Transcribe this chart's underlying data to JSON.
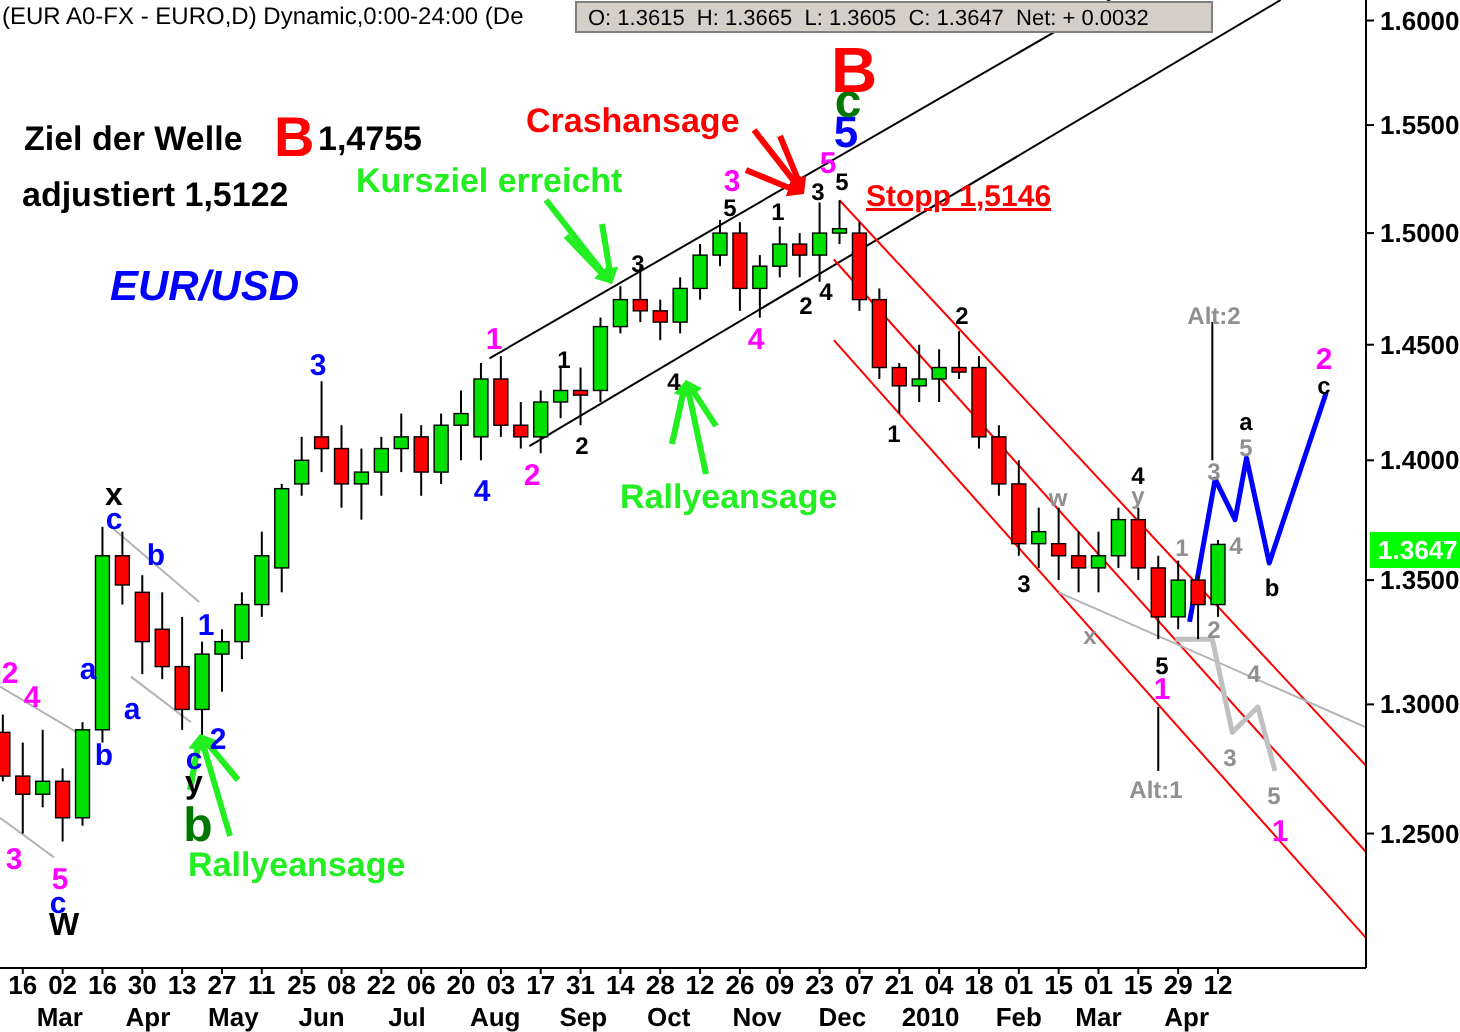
{
  "chart_data": {
    "type": "candlestick",
    "title": "(EUR A0-FX - EURO,D) Dynamic,0:00-24:00 (De",
    "subtitle": "O: 1.3615  H: 1.3665  L: 1.3605  C: 1.3647  Net: + 0.0032",
    "log": "y",
    "xlim": [
      "2009-02-08",
      "2010-06-03"
    ],
    "ylim": [
      1.2,
      1.61
    ],
    "yticks": [
      {
        "value": 1.25,
        "label": "1.2500"
      },
      {
        "value": 1.3,
        "label": "1.3000"
      },
      {
        "value": 1.35,
        "label": "1.3500"
      },
      {
        "value": 1.4,
        "label": "1.4000"
      },
      {
        "value": 1.45,
        "label": "1.4500"
      },
      {
        "value": 1.5,
        "label": "1.5000"
      },
      {
        "value": 1.55,
        "label": "1.5500"
      },
      {
        "value": 1.6,
        "label": "1.6000"
      }
    ],
    "xticks": [
      {
        "value": "2009-02-16",
        "label": "16"
      },
      {
        "value": "2009-03-02",
        "label": "02"
      },
      {
        "value": "2009-03-16",
        "label": "16"
      },
      {
        "value": "2009-03-30",
        "label": "30"
      },
      {
        "value": "2009-04-13",
        "label": "13"
      },
      {
        "value": "2009-04-27",
        "label": "27"
      },
      {
        "value": "2009-05-11",
        "label": "11"
      },
      {
        "value": "2009-05-25",
        "label": "25"
      },
      {
        "value": "2009-06-08",
        "label": "08"
      },
      {
        "value": "2009-06-22",
        "label": "22"
      },
      {
        "value": "2009-07-06",
        "label": "06"
      },
      {
        "value": "2009-07-20",
        "label": "20"
      },
      {
        "value": "2009-08-03",
        "label": "03"
      },
      {
        "value": "2009-08-17",
        "label": "17"
      },
      {
        "value": "2009-08-31",
        "label": "31"
      },
      {
        "value": "2009-09-14",
        "label": "14"
      },
      {
        "value": "2009-09-28",
        "label": "28"
      },
      {
        "value": "2009-10-12",
        "label": "12"
      },
      {
        "value": "2009-10-26",
        "label": "26"
      },
      {
        "value": "2009-11-09",
        "label": "09"
      },
      {
        "value": "2009-11-23",
        "label": "23"
      },
      {
        "value": "2009-12-07",
        "label": "07"
      },
      {
        "value": "2009-12-21",
        "label": "21"
      },
      {
        "value": "2010-01-04",
        "label": "04"
      },
      {
        "value": "2010-01-18",
        "label": "18"
      },
      {
        "value": "2010-02-01",
        "label": "01"
      },
      {
        "value": "2010-02-15",
        "label": "15"
      },
      {
        "value": "2010-03-01",
        "label": "01"
      },
      {
        "value": "2010-03-15",
        "label": "15"
      },
      {
        "value": "2010-03-29",
        "label": "29"
      },
      {
        "value": "2010-04-12",
        "label": "12"
      }
    ],
    "x2lim": [
      "2009-02-08",
      "2010-06-03"
    ],
    "x2ticks": [
      {
        "value": "2009-03-01",
        "label": "Mar"
      },
      {
        "value": "2009-04-01",
        "label": "Apr"
      },
      {
        "value": "2009-05-01",
        "label": "May"
      },
      {
        "value": "2009-06-01",
        "label": "Jun"
      },
      {
        "value": "2009-07-01",
        "label": "Jul"
      },
      {
        "value": "2009-08-01",
        "label": "Aug"
      },
      {
        "value": "2009-09-01",
        "label": "Sep"
      },
      {
        "value": "2009-10-01",
        "label": "Oct"
      },
      {
        "value": "2009-11-01",
        "label": "Nov"
      },
      {
        "value": "2009-12-01",
        "label": "Dec"
      },
      {
        "value": "2010-01-01",
        "label": "2010"
      },
      {
        "value": "2010-02-01",
        "label": "Feb"
      },
      {
        "value": "2010-03-01",
        "label": "Mar"
      },
      {
        "value": "2010-04-01",
        "label": "Apr"
      }
    ],
    "x": [
      "2009-02-09",
      "2009-02-16",
      "2009-02-23",
      "2009-03-02",
      "2009-03-09",
      "2009-03-16",
      "2009-03-23",
      "2009-03-30",
      "2009-04-06",
      "2009-04-13",
      "2009-04-20",
      "2009-04-27",
      "2009-05-04",
      "2009-05-11",
      "2009-05-18",
      "2009-05-25",
      "2009-06-01",
      "2009-06-08",
      "2009-06-15",
      "2009-06-22",
      "2009-06-29",
      "2009-07-06",
      "2009-07-13",
      "2009-07-20",
      "2009-07-27",
      "2009-08-03",
      "2009-08-10",
      "2009-08-17",
      "2009-08-24",
      "2009-08-31",
      "2009-09-07",
      "2009-09-14",
      "2009-09-21",
      "2009-09-28",
      "2009-10-05",
      "2009-10-12",
      "2009-10-19",
      "2009-10-26",
      "2009-11-02",
      "2009-11-09",
      "2009-11-16",
      "2009-11-23",
      "2009-11-30",
      "2009-12-07",
      "2009-12-14",
      "2009-12-21",
      "2009-12-28",
      "2010-01-04",
      "2010-01-11",
      "2010-01-18",
      "2010-01-25",
      "2010-02-01",
      "2010-02-08",
      "2010-02-15",
      "2010-02-22",
      "2010-03-01",
      "2010-03-08",
      "2010-03-15",
      "2010-03-22",
      "2010-03-29",
      "2010-04-05",
      "2010-04-12"
    ],
    "ohlc": [
      [
        1.289,
        1.296,
        1.27,
        1.272
      ],
      [
        1.272,
        1.285,
        1.25,
        1.265
      ],
      [
        1.265,
        1.29,
        1.26,
        1.27
      ],
      [
        1.27,
        1.275,
        1.247,
        1.256
      ],
      [
        1.256,
        1.293,
        1.253,
        1.29
      ],
      [
        1.29,
        1.372,
        1.285,
        1.36
      ],
      [
        1.36,
        1.37,
        1.34,
        1.348
      ],
      [
        1.345,
        1.352,
        1.312,
        1.325
      ],
      [
        1.33,
        1.345,
        1.31,
        1.315
      ],
      [
        1.315,
        1.335,
        1.29,
        1.298
      ],
      [
        1.298,
        1.325,
        1.287,
        1.32
      ],
      [
        1.32,
        1.33,
        1.305,
        1.325
      ],
      [
        1.325,
        1.345,
        1.318,
        1.34
      ],
      [
        1.34,
        1.37,
        1.335,
        1.36
      ],
      [
        1.355,
        1.39,
        1.345,
        1.388
      ],
      [
        1.39,
        1.41,
        1.385,
        1.4
      ],
      [
        1.41,
        1.434,
        1.395,
        1.405
      ],
      [
        1.405,
        1.415,
        1.38,
        1.39
      ],
      [
        1.39,
        1.405,
        1.375,
        1.395
      ],
      [
        1.395,
        1.41,
        1.385,
        1.405
      ],
      [
        1.405,
        1.42,
        1.395,
        1.41
      ],
      [
        1.41,
        1.415,
        1.385,
        1.395
      ],
      [
        1.395,
        1.42,
        1.39,
        1.415
      ],
      [
        1.415,
        1.43,
        1.4,
        1.42
      ],
      [
        1.41,
        1.442,
        1.4,
        1.435
      ],
      [
        1.435,
        1.445,
        1.41,
        1.415
      ],
      [
        1.415,
        1.425,
        1.405,
        1.41
      ],
      [
        1.41,
        1.43,
        1.403,
        1.425
      ],
      [
        1.425,
        1.44,
        1.418,
        1.43
      ],
      [
        1.43,
        1.44,
        1.415,
        1.428
      ],
      [
        1.43,
        1.462,
        1.425,
        1.458
      ],
      [
        1.458,
        1.476,
        1.455,
        1.47
      ],
      [
        1.47,
        1.485,
        1.46,
        1.465
      ],
      [
        1.465,
        1.47,
        1.452,
        1.46
      ],
      [
        1.46,
        1.48,
        1.455,
        1.475
      ],
      [
        1.475,
        1.495,
        1.47,
        1.49
      ],
      [
        1.49,
        1.506,
        1.485,
        1.5
      ],
      [
        1.5,
        1.505,
        1.465,
        1.475
      ],
      [
        1.475,
        1.49,
        1.462,
        1.485
      ],
      [
        1.485,
        1.503,
        1.48,
        1.495
      ],
      [
        1.495,
        1.5,
        1.48,
        1.49
      ],
      [
        1.49,
        1.514,
        1.478,
        1.5
      ],
      [
        1.5,
        1.515,
        1.495,
        1.502
      ],
      [
        1.5,
        1.505,
        1.465,
        1.47
      ],
      [
        1.47,
        1.475,
        1.435,
        1.44
      ],
      [
        1.44,
        1.442,
        1.42,
        1.432
      ],
      [
        1.432,
        1.45,
        1.425,
        1.435
      ],
      [
        1.435,
        1.448,
        1.425,
        1.44
      ],
      [
        1.44,
        1.456,
        1.435,
        1.438
      ],
      [
        1.44,
        1.445,
        1.405,
        1.41
      ],
      [
        1.41,
        1.415,
        1.385,
        1.39
      ],
      [
        1.39,
        1.4,
        1.36,
        1.365
      ],
      [
        1.365,
        1.38,
        1.355,
        1.37
      ],
      [
        1.365,
        1.38,
        1.35,
        1.36
      ],
      [
        1.36,
        1.37,
        1.345,
        1.355
      ],
      [
        1.355,
        1.37,
        1.345,
        1.36
      ],
      [
        1.36,
        1.38,
        1.355,
        1.375
      ],
      [
        1.375,
        1.38,
        1.35,
        1.355
      ],
      [
        1.355,
        1.36,
        1.326,
        1.335
      ],
      [
        1.335,
        1.358,
        1.33,
        1.35
      ],
      [
        1.35,
        1.352,
        1.326,
        1.34
      ],
      [
        1.34,
        1.3665,
        1.335,
        1.3647
      ]
    ],
    "series": [
      {
        "type": "line",
        "color": "#000000",
        "x": [
          "2009-07-30",
          "2010-03-05"
        ],
        "values": [
          1.444,
          1.61
        ]
      },
      {
        "type": "line",
        "color": "#000000",
        "x": [
          "2009-08-13",
          "2010-05-04"
        ],
        "values": [
          1.406,
          1.61
        ]
      },
      {
        "type": "line",
        "color": "#ff0000",
        "x": [
          "2009-11-30",
          "2010-06-03"
        ],
        "values": [
          1.515,
          1.276
        ]
      },
      {
        "type": "line",
        "color": "#ff0000",
        "x": [
          "2009-11-28",
          "2010-06-03"
        ],
        "values": [
          1.488,
          1.243
        ]
      },
      {
        "type": "line",
        "color": "#ff0000",
        "x": [
          "2009-11-28",
          "2010-06-03"
        ],
        "values": [
          1.452,
          1.211
        ]
      },
      {
        "type": "line",
        "color": "#b4b4b4",
        "x": [
          "2009-02-08",
          "2009-03-07"
        ],
        "values": [
          1.307,
          1.289
        ]
      },
      {
        "type": "line",
        "color": "#b4b4b4",
        "x": [
          "2009-03-19",
          "2009-04-19"
        ],
        "values": [
          1.372,
          1.341
        ]
      },
      {
        "type": "line",
        "color": "#b4b4b4",
        "x": [
          "2009-03-26",
          "2009-04-16"
        ],
        "values": [
          1.311,
          1.293
        ]
      },
      {
        "type": "line",
        "color": "#b4b4b4",
        "x": [
          "2009-02-08",
          "2009-02-27"
        ],
        "values": [
          1.256,
          1.241
        ]
      },
      {
        "type": "line",
        "color": "#b4b4b4",
        "x": [
          "2010-02-15",
          "2010-06-03"
        ],
        "values": [
          1.345,
          1.291
        ]
      },
      {
        "type": "line",
        "color": "#000000",
        "x": [
          "2010-04-10",
          "2010-04-10"
        ],
        "values": [
          1.46,
          1.4
        ]
      },
      {
        "type": "line",
        "color": "#000000",
        "x": [
          "2010-03-22",
          "2010-03-22"
        ],
        "values": [
          1.299,
          1.274
        ]
      },
      {
        "type": "line",
        "color": "#c0c0c0",
        "x": [
          "2010-03-28",
          "2010-04-10",
          "2010-04-17",
          "2010-04-26",
          "2010-05-02"
        ],
        "values": [
          1.326,
          1.326,
          1.289,
          1.299,
          1.274
        ]
      },
      {
        "type": "line",
        "color": "#0000ff",
        "x": [
          "2010-04-02",
          "2010-04-11",
          "2010-04-18",
          "2010-04-22",
          "2010-04-30",
          "2010-05-20"
        ],
        "values": [
          1.333,
          1.392,
          1.375,
          1.401,
          1.357,
          1.429
        ]
      }
    ],
    "annotations": [
      "Ziel der Welle",
      "B",
      "1,4755",
      "adjustiert 1,5122",
      "EUR/USD",
      "Crashansage",
      "Kursziel erreicht",
      "Rallyeansage",
      "Rallyeansage",
      "Stopp 1,5146",
      "2",
      "4",
      "3",
      "5",
      "c",
      "W",
      "x",
      "c",
      "b",
      "a",
      "b",
      "a",
      "1",
      "2",
      "c",
      "y",
      "b",
      "3",
      "4",
      "1",
      "2",
      "1",
      "2",
      "3",
      "4",
      "3",
      "5",
      "4",
      "1",
      "2",
      "4",
      "3",
      "5",
      "5",
      "5",
      "c",
      "B",
      "1",
      "2",
      "3",
      "w",
      "x",
      "4",
      "y",
      "5",
      "1",
      "Alt:1",
      "1",
      "2",
      "3",
      "Alt:2",
      "4",
      "a",
      "5",
      "b",
      "c",
      "2",
      "4",
      "3",
      "5",
      "1",
      "1.3647"
    ]
  }
}
